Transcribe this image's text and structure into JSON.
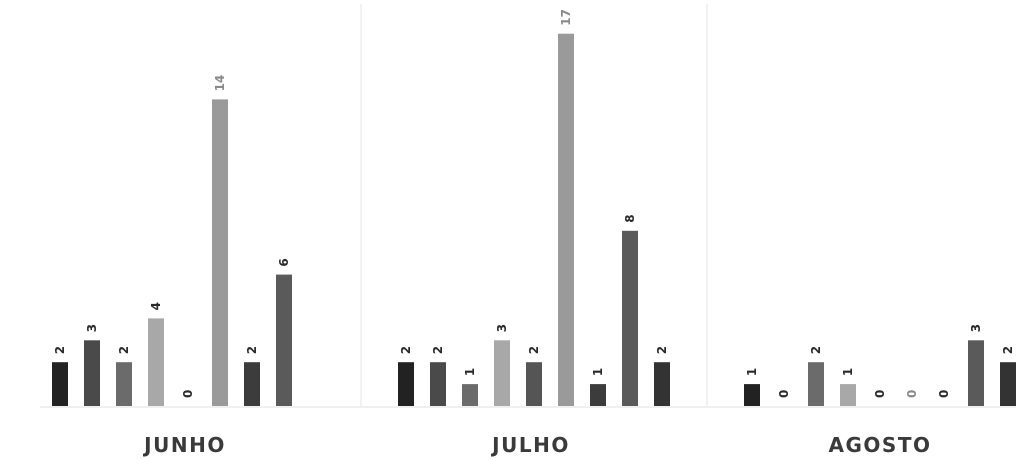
{
  "chart_data": {
    "type": "bar",
    "title": "",
    "xlabel": "",
    "ylabel": "",
    "ylim": [
      0,
      18
    ],
    "grid": false,
    "legend": "none",
    "categories": [
      "JUNHO",
      "JULHO",
      "AGOSTO"
    ],
    "series": [
      {
        "color": "#222222",
        "values": [
          2,
          2,
          1
        ]
      },
      {
        "color": "#4a4a4a",
        "values": [
          3,
          2,
          0
        ]
      },
      {
        "color": "#6b6b6b",
        "values": [
          2,
          1,
          2
        ]
      },
      {
        "color": "#a8a8a8",
        "values": [
          4,
          3,
          1
        ]
      },
      {
        "color": "#555555",
        "values": [
          0,
          2,
          0
        ]
      },
      {
        "color": "#9a9a9a",
        "values": [
          14,
          17,
          0
        ]
      },
      {
        "color": "#3c3c3c",
        "values": [
          2,
          1,
          0
        ]
      },
      {
        "color": "#5a5a5a",
        "values": [
          6,
          8,
          3
        ]
      },
      {
        "color": "#333333",
        "values": [
          null,
          2,
          2
        ]
      }
    ]
  }
}
